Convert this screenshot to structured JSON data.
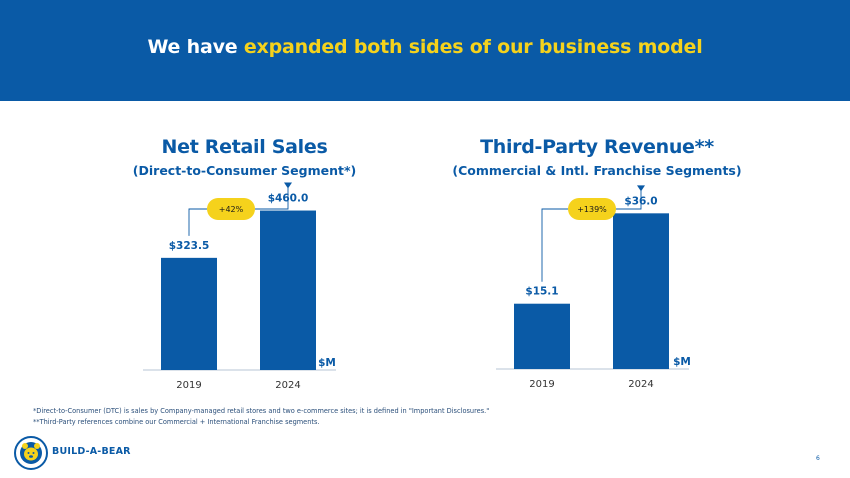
{
  "header": {
    "title_prefix": "We have ",
    "title_highlight": "expanded both sides of our business model"
  },
  "colors": {
    "brand_blue": "#0a5aa6",
    "highlight_yellow": "#f5d21c",
    "bar": "#0a5aa6"
  },
  "chart_data": [
    {
      "type": "bar",
      "title": "Net Retail Sales",
      "subtitle": "(Direct-to-Consumer Segment*)",
      "categories": [
        "2019",
        "2024"
      ],
      "values": [
        323.5,
        460.0
      ],
      "value_labels": [
        "$323.5",
        "$460.0"
      ],
      "growth_label": "+42%",
      "unit_label": "$M",
      "ylim": [
        0,
        600
      ]
    },
    {
      "type": "bar",
      "title": "Third-Party Revenue**",
      "subtitle": "(Commercial & Intl. Franchise Segments)",
      "categories": [
        "2019",
        "2024"
      ],
      "values": [
        15.1,
        36.0
      ],
      "value_labels": [
        "$15.1",
        "$36.0"
      ],
      "growth_label": "+139%",
      "unit_label": "$M",
      "ylim": [
        0,
        48.1
      ]
    }
  ],
  "footnotes": [
    "*Direct-to-Consumer (DTC) is sales by Company-managed retail stores and two e-commerce sites; it is defined in \"Important Disclosures.\"",
    "**Third-Party references combine our Commercial + International Franchise segments."
  ],
  "logo": {
    "name": "BUILD-A-BEAR"
  },
  "page_number": "6"
}
